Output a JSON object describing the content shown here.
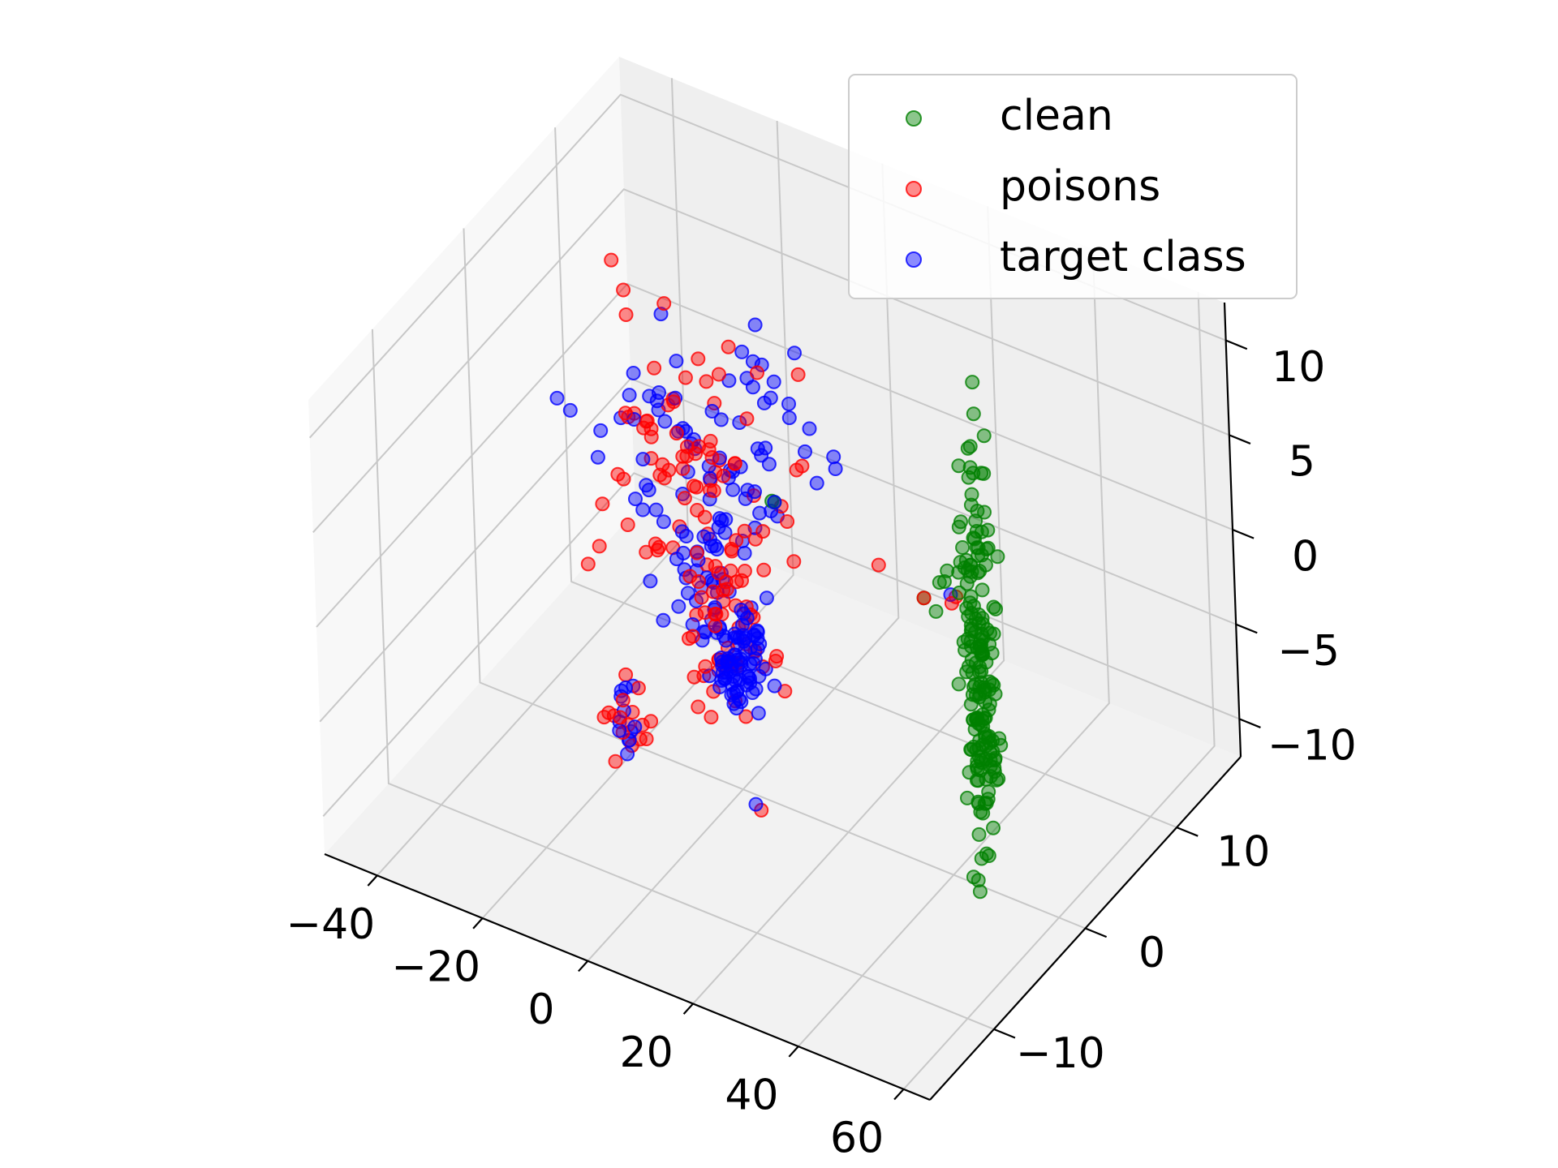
{
  "chart_data": {
    "type": "scatter",
    "projection": "3d",
    "title": "",
    "xlabel": "",
    "ylabel": "",
    "zlabel": "",
    "xlim": [
      -50,
      65
    ],
    "ylim": [
      -17,
      17
    ],
    "zlim": [
      -12,
      12
    ],
    "x_ticks": [
      "−40",
      "−20",
      "0",
      "20",
      "40",
      "60"
    ],
    "x_tick_values": [
      -40,
      -20,
      0,
      20,
      40,
      60
    ],
    "y_ticks": [
      "−10",
      "0",
      "10"
    ],
    "y_tick_values": [
      -10,
      0,
      10
    ],
    "z_ticks": [
      "−10",
      "−5",
      "0",
      "5",
      "10"
    ],
    "z_tick_values": [
      -10,
      -5,
      0,
      5,
      10
    ],
    "grid": true,
    "legend_position": "upper right",
    "marker_alpha": 0.45,
    "series": [
      {
        "name": "clean",
        "color": "#008000",
        "clusters": [
          {
            "center": [
              41,
              3,
              -2.5
            ],
            "spread": [
              0.9,
              0.7,
              5.5
            ],
            "count": 170
          },
          {
            "center": [
              40.5,
              2,
              3.5
            ],
            "spread": [
              2.5,
              1.2,
              0.6
            ],
            "count": 14
          },
          {
            "center": [
              43,
              1,
              -4.5
            ],
            "spread": [
              0.4,
              0.4,
              0.6
            ],
            "count": 6
          }
        ],
        "points": [
          [
            13,
            -3,
            6.3
          ],
          [
            13.5,
            -3,
            6.3
          ],
          [
            27,
            5,
            -1.5
          ]
        ]
      },
      {
        "name": "poisons",
        "color": "#ff0000",
        "clusters": [
          {
            "center": [
              -15,
              4,
              1.5
            ],
            "spread": [
              9,
              3,
              3.5
            ],
            "count": 75
          },
          {
            "center": [
              -1,
              0,
              -3.5
            ],
            "spread": [
              3.5,
              1.2,
              3
            ],
            "count": 55
          },
          {
            "center": [
              -12,
              -5,
              -7.5
            ],
            "spread": [
              2,
              1,
              1.2
            ],
            "count": 16
          }
        ],
        "points": [
          [
            24,
            2,
            1.5
          ],
          [
            27,
            5,
            -1.5
          ],
          [
            36,
            3,
            0.3
          ],
          [
            35,
            4,
            0
          ],
          [
            18,
            -8,
            -6.8
          ],
          [
            15,
            -2,
            2.8
          ],
          [
            14,
            -2,
            4.8
          ]
        ]
      },
      {
        "name": "target class",
        "color": "#0000ff",
        "clusters": [
          {
            "center": [
              -18,
              6,
              0.5
            ],
            "spread": [
              10,
              2.5,
              3
            ],
            "count": 80
          },
          {
            "center": [
              3,
              -1,
              -4.5
            ],
            "spread": [
              2.5,
              1,
              1.3
            ],
            "count": 75
          },
          {
            "center": [
              -9,
              2,
              -3
            ],
            "spread": [
              3,
              1.2,
              2
            ],
            "count": 35
          },
          {
            "center": [
              -12,
              -5,
              -7
            ],
            "spread": [
              1.2,
              0.5,
              0.8
            ],
            "count": 12
          }
        ],
        "points": [
          [
            34,
            4,
            0
          ],
          [
            13.5,
            -3,
            6.3
          ],
          [
            17,
            -8,
            -6.6
          ]
        ]
      }
    ]
  }
}
